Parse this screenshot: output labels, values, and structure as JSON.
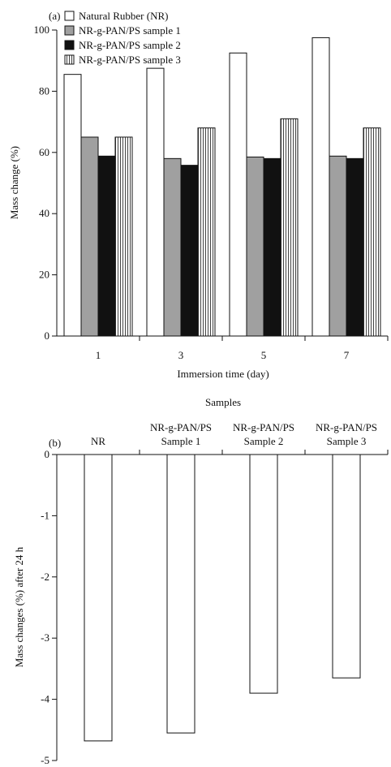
{
  "chart_data": [
    {
      "panel_label": "(a)",
      "type": "bar",
      "xlabel": "Immersion time (day)",
      "ylabel": "Mass change (%)",
      "categories": [
        "1",
        "3",
        "5",
        "7"
      ],
      "ylim": [
        0,
        100
      ],
      "yticks": [
        0,
        20,
        40,
        60,
        80,
        100
      ],
      "legend_position": "top-left",
      "series": [
        {
          "name": "Natural Rubber (NR)",
          "fill": "#ffffff",
          "pattern": "none",
          "values": [
            85.5,
            87.5,
            92.5,
            97.5
          ]
        },
        {
          "name": "NR-g-PAN/PS sample 1",
          "fill": "#a0a0a0",
          "pattern": "none",
          "values": [
            65,
            58,
            58.5,
            58.8
          ]
        },
        {
          "name": "NR-g-PAN/PS sample 2",
          "fill": "#111111",
          "pattern": "none",
          "values": [
            58.8,
            55.8,
            58,
            58
          ]
        },
        {
          "name": "NR-g-PAN/PS sample 3",
          "fill": "#ffffff",
          "pattern": "vertical-stripes",
          "values": [
            65,
            68,
            71,
            68
          ]
        }
      ]
    },
    {
      "panel_label": "(b)",
      "type": "bar",
      "title": "Samples",
      "ylabel": "Mass changes (%) after 24 h",
      "categories": [
        [
          "NR"
        ],
        [
          "NR-g-PAN/PS",
          "Sample 1"
        ],
        [
          "NR-g-PAN/PS",
          "Sample 2"
        ],
        [
          "NR-g-PAN/PS",
          "Sample 3"
        ]
      ],
      "ylim": [
        -5,
        0
      ],
      "yticks": [
        0,
        -1,
        -2,
        -3,
        -4,
        -5
      ],
      "x_axis_position": "top",
      "values": [
        -4.68,
        -4.55,
        -3.9,
        -3.65
      ],
      "fill": "#ffffff"
    }
  ]
}
